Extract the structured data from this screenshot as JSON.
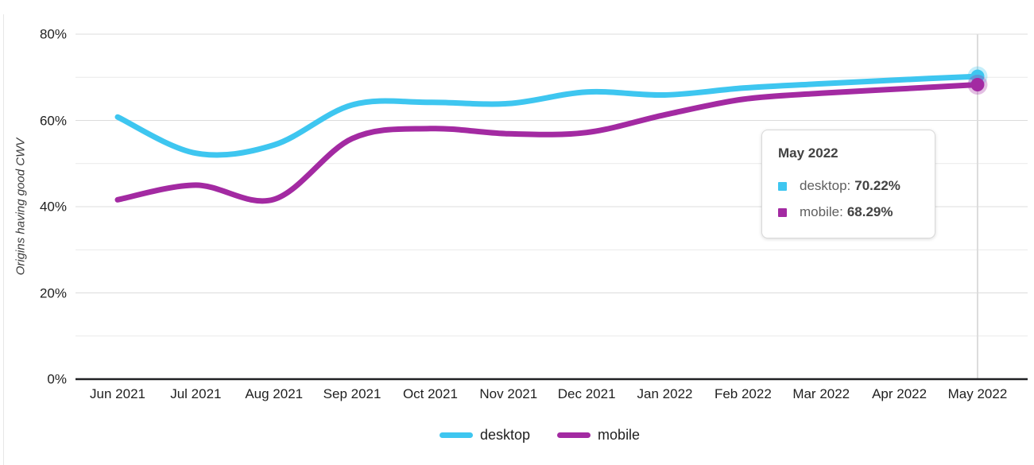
{
  "chart_data": {
    "type": "line",
    "title": "",
    "xlabel": "",
    "ylabel": "Origins having good CWV",
    "categories": [
      "Jun 2021",
      "Jul 2021",
      "Aug 2021",
      "Sep 2021",
      "Oct 2021",
      "Nov 2021",
      "Dec 2021",
      "Jan 2022",
      "Feb 2022",
      "Mar 2022",
      "Apr 2022",
      "May 2022"
    ],
    "series": [
      {
        "name": "desktop",
        "color": "#3ec6f0",
        "values": [
          60.8,
          52.4,
          54.3,
          63.6,
          64.2,
          63.9,
          66.6,
          65.9,
          67.5,
          68.5,
          69.4,
          70.22
        ]
      },
      {
        "name": "mobile",
        "color": "#a32aa2",
        "values": [
          41.6,
          45.0,
          41.7,
          55.8,
          58.1,
          56.9,
          57.2,
          61.3,
          64.9,
          66.3,
          67.3,
          68.29
        ]
      }
    ],
    "ylim": [
      0,
      80
    ],
    "y_axis": {
      "ticks": [
        {
          "value": 0,
          "label": "0%"
        },
        {
          "value": 20,
          "label": "20%"
        },
        {
          "value": 40,
          "label": "40%"
        },
        {
          "value": 60,
          "label": "60%"
        },
        {
          "value": 80,
          "label": "80%"
        }
      ],
      "minor_ticks": [
        10,
        30,
        50,
        70
      ]
    },
    "grid": "on",
    "legend_position": "bottom",
    "hover": {
      "index": 11,
      "label": "May 2022"
    }
  },
  "tooltip": {
    "title": "May 2022",
    "rows": [
      {
        "label": "desktop:",
        "value": "70.22%",
        "color": "#3ec6f0"
      },
      {
        "label": "mobile:",
        "value": "68.29%",
        "color": "#a32aa2"
      }
    ]
  },
  "legend": {
    "items": [
      {
        "label": "desktop",
        "color": "#3ec6f0"
      },
      {
        "label": "mobile",
        "color": "#a32aa2"
      }
    ]
  },
  "colors": {
    "desktop": "#3ec6f0",
    "mobile": "#a32aa2",
    "gridline_major": "#dcdcdc",
    "gridline_minor": "#e9e9e9",
    "axis_line": "#202124",
    "hover_line": "#dcdcdc"
  }
}
